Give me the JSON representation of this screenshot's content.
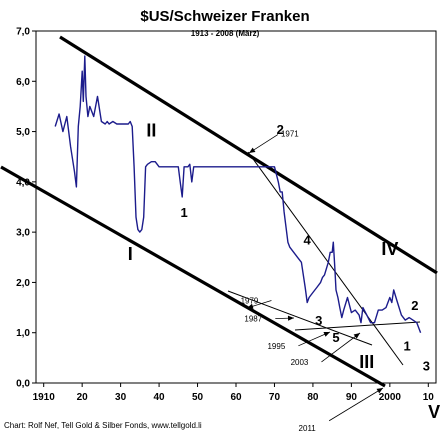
{
  "chart_data": {
    "type": "line",
    "title": "$US/Schweizer Franken",
    "subtitle": "1913 - 2008 (März)",
    "credit": "Chart: Rolf Nef, Tell Gold & Silber Fonds, www.tellgold.li",
    "xlim": [
      1908,
      2012
    ],
    "ylim": [
      0,
      7
    ],
    "x_ticks": [
      {
        "v": 1910,
        "label": "1910"
      },
      {
        "v": 1920,
        "label": "20"
      },
      {
        "v": 1930,
        "label": "30"
      },
      {
        "v": 1940,
        "label": "40"
      },
      {
        "v": 1950,
        "label": "50"
      },
      {
        "v": 1960,
        "label": "60"
      },
      {
        "v": 1970,
        "label": "70"
      },
      {
        "v": 1980,
        "label": "80"
      },
      {
        "v": 1990,
        "label": "90"
      },
      {
        "v": 2000,
        "label": "2000"
      },
      {
        "v": 2010,
        "label": "10"
      }
    ],
    "y_ticks": [
      {
        "v": 0,
        "label": "0,0"
      },
      {
        "v": 1,
        "label": "1,0"
      },
      {
        "v": 2,
        "label": "2,0"
      },
      {
        "v": 3,
        "label": "3,0"
      },
      {
        "v": 4,
        "label": "4,0"
      },
      {
        "v": 5,
        "label": "5,0"
      },
      {
        "v": 6,
        "label": "6,0"
      },
      {
        "v": 7,
        "label": "7,0"
      }
    ],
    "grid": false,
    "series": [
      {
        "color": "#1c1c8c",
        "x": [
          1913,
          1914,
          1915,
          1916,
          1917,
          1918,
          1918.5,
          1919,
          1919.5,
          1920,
          1920.3,
          1920.7,
          1921,
          1921.5,
          1922,
          1923,
          1924,
          1925,
          1926,
          1926.5,
          1927,
          1928,
          1929,
          1930,
          1931,
          1932,
          1932.5,
          1933,
          1933.5,
          1934,
          1934.5,
          1935,
          1935.5,
          1936,
          1936.5,
          1937,
          1938,
          1939,
          1940,
          1941,
          1942,
          1943,
          1944,
          1945,
          1945.5,
          1946,
          1946.5,
          1947,
          1947.5,
          1948,
          1948.5,
          1949,
          1949.5,
          1950,
          1952,
          1955,
          1958,
          1960,
          1962,
          1965,
          1968,
          1970,
          1971,
          1971.5,
          1972,
          1972.5,
          1973,
          1973.5,
          1974,
          1975,
          1976,
          1977,
          1978,
          1978.5,
          1979,
          1980,
          1981,
          1982,
          1982.5,
          1983,
          1984,
          1984.5,
          1985,
          1985.3,
          1985.7,
          1986,
          1986.5,
          1987,
          1987.5,
          1988,
          1989,
          1990,
          1991,
          1992,
          1992.5,
          1993,
          1994,
          1995,
          1996,
          1997,
          1998,
          1999,
          2000,
          2000.5,
          2001,
          2002,
          2003,
          2004,
          2005,
          2006,
          2007,
          2008
        ],
        "y": [
          5.1,
          5.35,
          5.0,
          5.3,
          4.7,
          4.2,
          3.9,
          5.1,
          5.5,
          6.2,
          5.6,
          6.5,
          5.7,
          5.3,
          5.5,
          5.3,
          5.7,
          5.2,
          5.15,
          5.2,
          5.15,
          5.2,
          5.15,
          5.15,
          5.15,
          5.15,
          5.2,
          5.1,
          4.3,
          3.3,
          3.05,
          3.0,
          3.05,
          3.3,
          4.3,
          4.35,
          4.4,
          4.4,
          4.3,
          4.3,
          4.3,
          4.3,
          4.3,
          4.3,
          4.0,
          3.7,
          4.3,
          4.3,
          4.3,
          4.35,
          4.0,
          4.3,
          4.3,
          4.3,
          4.3,
          4.3,
          4.3,
          4.3,
          4.3,
          4.3,
          4.3,
          4.3,
          4.0,
          3.8,
          3.8,
          3.4,
          3.1,
          2.8,
          2.7,
          2.6,
          2.5,
          2.4,
          1.9,
          1.6,
          1.7,
          1.8,
          1.9,
          2.0,
          2.1,
          2.15,
          2.4,
          2.6,
          2.6,
          2.8,
          2.3,
          1.85,
          1.7,
          1.5,
          1.3,
          1.45,
          1.7,
          1.4,
          1.45,
          1.35,
          1.2,
          1.5,
          1.35,
          1.2,
          1.2,
          1.45,
          1.45,
          1.5,
          1.7,
          1.6,
          1.85,
          1.6,
          1.35,
          1.25,
          1.3,
          1.25,
          1.2,
          1.0
        ]
      }
    ],
    "annotations": {
      "roman": [
        {
          "label": "I",
          "x": 1932.5,
          "y": 2.45
        },
        {
          "label": "II",
          "x": 1938,
          "y": 4.9
        },
        {
          "label": "III",
          "x": 1994,
          "y": 0.3
        },
        {
          "label": "IV",
          "x": 2000,
          "y": 2.55
        },
        {
          "label": "V",
          "x": 2011.5,
          "y": -0.7
        }
      ],
      "waves": [
        {
          "label": "1",
          "x": 1946.5,
          "y": 3.3
        },
        {
          "label": "2",
          "x": 1971.5,
          "y": 4.95
        },
        {
          "label": "3",
          "x": 1981.5,
          "y": 1.15
        },
        {
          "label": "4",
          "x": 1978.5,
          "y": 2.75
        },
        {
          "label": "5",
          "x": 1986,
          "y": 0.82
        },
        {
          "label": "1",
          "x": 2004.5,
          "y": 0.65
        },
        {
          "label": "2",
          "x": 2006.5,
          "y": 1.45
        },
        {
          "label": "3",
          "x": 2009.5,
          "y": 0.25
        }
      ],
      "year_notes": [
        {
          "label": "1971",
          "x": 1974,
          "y": 4.9
        },
        {
          "label": "1979",
          "x": 1963.5,
          "y": 1.58
        },
        {
          "label": "1987",
          "x": 1964.5,
          "y": 1.22
        },
        {
          "label": "1995",
          "x": 1970.5,
          "y": 0.68
        },
        {
          "label": "2003",
          "x": 1976.5,
          "y": 0.36
        },
        {
          "label": "2011",
          "x": 1978.5,
          "y": -0.95
        }
      ]
    }
  }
}
